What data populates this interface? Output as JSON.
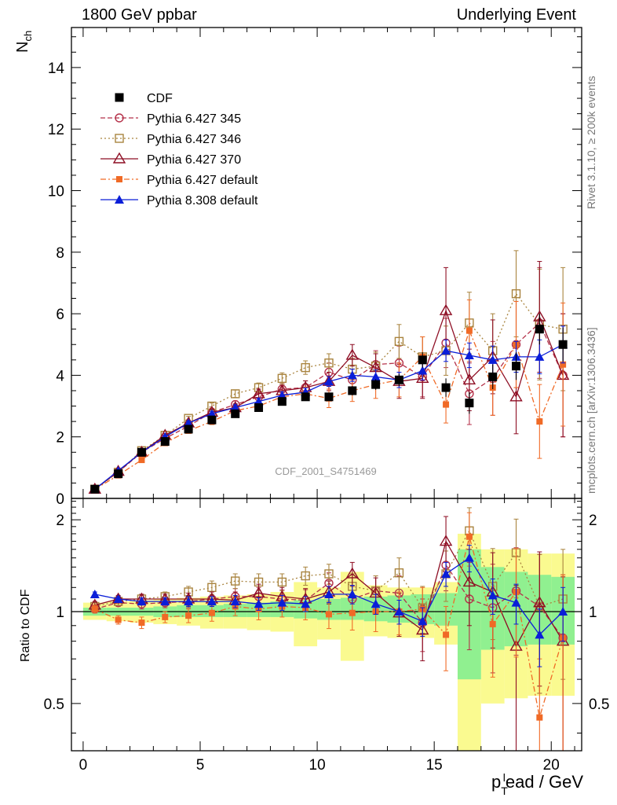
{
  "header": {
    "left": "1800 GeV ppbar",
    "right": "Underlying Event"
  },
  "side_labels": {
    "rivet": "Rivet 3.1.10, ≥ 200k events",
    "mcplots": "mcplots.cern.ch [arXiv:1306.3436]"
  },
  "chart_data": [
    {
      "type": "line",
      "name": "main",
      "title": "",
      "ylabel": "N_ch",
      "xlabel": "",
      "watermark": "CDF_2001_S4751469",
      "xlim": [
        -0.5,
        21.3
      ],
      "ylim": [
        0,
        15.3
      ],
      "yticks": [
        0,
        2,
        4,
        6,
        8,
        10,
        12,
        14
      ],
      "legend_position": "top-left",
      "x": [
        0.5,
        1.5,
        2.5,
        3.5,
        4.5,
        5.5,
        6.5,
        7.5,
        8.5,
        9.5,
        10.5,
        11.5,
        12.5,
        13.5,
        14.5,
        15.5,
        16.5,
        17.5,
        18.5,
        19.5,
        20.5
      ],
      "series": [
        {
          "name": "CDF",
          "style": "data",
          "color": "#000000",
          "marker": "square-filled",
          "values": [
            0.3,
            0.8,
            1.5,
            1.85,
            2.25,
            2.55,
            2.75,
            2.95,
            3.15,
            3.3,
            3.3,
            3.5,
            3.7,
            3.85,
            4.5,
            3.6,
            3.1,
            3.95,
            4.3,
            5.5,
            5.0
          ],
          "errors": [
            0.02,
            0.04,
            0.06,
            0.07,
            0.08,
            0.09,
            0.1,
            0.1,
            0.11,
            0.12,
            0.13,
            0.15,
            0.17,
            0.2,
            0.25,
            0.3,
            0.35,
            0.4,
            0.45,
            0.5,
            0.55
          ]
        },
        {
          "name": "Pythia 6.427 345",
          "color": "#b5324a",
          "dash": "6,3",
          "marker": "circle-open",
          "values": [
            0.3,
            0.85,
            1.5,
            1.95,
            2.35,
            2.8,
            3.05,
            3.3,
            3.55,
            3.6,
            4.1,
            3.85,
            4.35,
            4.4,
            3.95,
            5.05,
            3.4,
            3.9,
            5.0,
            5.7,
            4.0
          ],
          "errors": [
            0.02,
            0.03,
            0.04,
            0.06,
            0.07,
            0.1,
            0.12,
            0.15,
            0.18,
            0.22,
            0.3,
            0.35,
            0.45,
            0.55,
            0.65,
            0.8,
            1.0,
            1.2,
            1.4,
            1.8,
            2.0
          ]
        },
        {
          "name": "Pythia 6.427 346",
          "color": "#a9843f",
          "dash": "2,3",
          "marker": "square-open",
          "values": [
            0.3,
            0.85,
            1.55,
            2.05,
            2.6,
            3.0,
            3.4,
            3.6,
            3.9,
            4.25,
            4.4,
            4.2,
            4.3,
            5.1,
            4.6,
            4.8,
            5.7,
            4.8,
            6.65,
            5.65,
            5.5
          ],
          "errors": [
            0.02,
            0.03,
            0.04,
            0.06,
            0.07,
            0.1,
            0.12,
            0.15,
            0.18,
            0.22,
            0.3,
            0.35,
            0.45,
            0.55,
            0.65,
            0.8,
            1.0,
            1.2,
            1.4,
            1.8,
            2.0
          ]
        },
        {
          "name": "Pythia 6.427 370",
          "color": "#8e0e24",
          "dash": "",
          "marker": "triangle-open",
          "values": [
            0.3,
            0.88,
            1.5,
            2.05,
            2.45,
            2.8,
            2.95,
            3.4,
            3.5,
            3.6,
            3.8,
            4.65,
            4.25,
            3.8,
            3.9,
            6.1,
            3.85,
            4.6,
            3.3,
            5.9,
            4.0
          ],
          "errors": [
            0.02,
            0.03,
            0.04,
            0.06,
            0.07,
            0.1,
            0.12,
            0.15,
            0.18,
            0.22,
            0.3,
            0.35,
            0.45,
            0.55,
            0.65,
            1.4,
            1.0,
            1.2,
            1.2,
            1.8,
            2.0
          ]
        },
        {
          "name": "Pythia 6.427 default",
          "color": "#f06a26",
          "dash": "7,3,2,3",
          "marker": "square-filled-small",
          "values": [
            0.3,
            0.75,
            1.25,
            1.8,
            2.2,
            2.5,
            2.85,
            3.0,
            3.3,
            3.4,
            3.25,
            3.5,
            3.7,
            3.85,
            4.6,
            3.05,
            5.45,
            3.6,
            5.0,
            2.5,
            4.35
          ],
          "errors": [
            0.02,
            0.03,
            0.04,
            0.06,
            0.07,
            0.1,
            0.12,
            0.15,
            0.18,
            0.22,
            0.3,
            0.35,
            0.45,
            0.55,
            0.65,
            0.6,
            1.0,
            0.9,
            1.4,
            1.2,
            2.0
          ]
        },
        {
          "name": "Pythia 8.308 default",
          "color": "#0a1ed8",
          "dash": "",
          "marker": "triangle-filled",
          "values": [
            0.3,
            0.9,
            1.5,
            2.0,
            2.45,
            2.75,
            2.95,
            3.15,
            3.35,
            3.45,
            3.8,
            4.0,
            3.95,
            3.85,
            4.15,
            4.8,
            4.65,
            4.5,
            4.6,
            4.6,
            5.0
          ],
          "errors": [
            0.02,
            0.03,
            0.04,
            0.05,
            0.06,
            0.08,
            0.09,
            0.1,
            0.12,
            0.14,
            0.16,
            0.2,
            0.22,
            0.25,
            0.3,
            0.35,
            0.4,
            0.45,
            0.5,
            0.55,
            0.6
          ]
        }
      ]
    },
    {
      "type": "line",
      "name": "ratio",
      "title": "",
      "ylabel": "Ratio to CDF",
      "xlabel": "p_T^lead / GeV",
      "xlim": [
        -0.5,
        21.3
      ],
      "ylim": [
        0.35,
        2.35
      ],
      "yticks": [
        0.5,
        1,
        2
      ],
      "xticks": [
        0,
        5,
        10,
        15,
        20
      ],
      "reference_line": 1,
      "bands": [
        {
          "name": "inner",
          "color": "#90f090",
          "lower": [
            0.97,
            0.97,
            0.97,
            0.96,
            0.96,
            0.96,
            0.96,
            0.96,
            0.96,
            0.95,
            0.94,
            0.94,
            0.93,
            0.92,
            0.91,
            0.9,
            0.6,
            0.75,
            0.77,
            0.78,
            0.78
          ],
          "upper": [
            1.03,
            1.03,
            1.03,
            1.04,
            1.05,
            1.05,
            1.06,
            1.07,
            1.08,
            1.09,
            1.1,
            1.11,
            1.12,
            1.13,
            1.14,
            1.15,
            1.6,
            1.4,
            1.35,
            1.32,
            1.3
          ]
        },
        {
          "name": "outer",
          "color": "#fafa90",
          "lower": [
            0.94,
            0.93,
            0.92,
            0.91,
            0.9,
            0.88,
            0.88,
            0.87,
            0.86,
            0.77,
            0.81,
            0.69,
            0.83,
            0.82,
            0.82,
            0.78,
            0.33,
            0.5,
            0.52,
            0.53,
            0.53
          ],
          "upper": [
            1.07,
            1.08,
            1.09,
            1.1,
            1.11,
            1.12,
            1.13,
            1.14,
            1.16,
            1.25,
            1.2,
            1.35,
            1.22,
            1.2,
            1.2,
            1.25,
            1.8,
            1.6,
            1.6,
            1.55,
            1.55
          ]
        }
      ],
      "x": [
        0.5,
        1.5,
        2.5,
        3.5,
        4.5,
        5.5,
        6.5,
        7.5,
        8.5,
        9.5,
        10.5,
        11.5,
        12.5,
        13.5,
        14.5,
        15.5,
        16.5,
        17.5,
        18.5,
        19.5,
        20.5
      ],
      "series": [
        {
          "name": "Pythia 6.427 345",
          "color": "#b5324a",
          "dash": "6,3",
          "marker": "circle-open",
          "values": [
            1.02,
            1.07,
            1.06,
            1.07,
            1.08,
            1.1,
            1.12,
            1.12,
            1.1,
            1.09,
            1.24,
            1.1,
            1.17,
            1.15,
            0.92,
            1.42,
            1.1,
            1.03,
            1.17,
            1.04,
            0.82
          ],
          "errors": [
            0.03,
            0.03,
            0.04,
            0.04,
            0.05,
            0.06,
            0.07,
            0.08,
            0.08,
            0.09,
            0.1,
            0.12,
            0.14,
            0.16,
            0.18,
            0.25,
            0.35,
            0.4,
            0.45,
            0.5,
            0.5
          ]
        },
        {
          "name": "Pythia 6.427 346",
          "color": "#a9843f",
          "dash": "2,3",
          "marker": "square-open",
          "values": [
            1.04,
            1.08,
            1.1,
            1.12,
            1.16,
            1.2,
            1.26,
            1.25,
            1.25,
            1.31,
            1.33,
            1.21,
            1.17,
            1.34,
            1.03,
            1.33,
            1.84,
            1.21,
            1.56,
            1.04,
            1.1
          ],
          "errors": [
            0.03,
            0.03,
            0.04,
            0.04,
            0.05,
            0.06,
            0.07,
            0.08,
            0.08,
            0.09,
            0.1,
            0.12,
            0.14,
            0.16,
            0.18,
            0.25,
            0.35,
            0.4,
            0.45,
            0.5,
            0.5
          ]
        },
        {
          "name": "Pythia 6.427 370",
          "color": "#8e0e24",
          "dash": "",
          "marker": "triangle-open",
          "values": [
            1.05,
            1.1,
            1.1,
            1.1,
            1.1,
            1.1,
            1.09,
            1.15,
            1.12,
            1.1,
            1.16,
            1.33,
            1.15,
            0.99,
            0.87,
            1.7,
            1.25,
            1.16,
            0.77,
            1.07,
            0.8
          ],
          "errors": [
            0.03,
            0.03,
            0.04,
            0.04,
            0.05,
            0.06,
            0.07,
            0.08,
            0.08,
            0.09,
            0.1,
            0.12,
            0.14,
            0.16,
            0.18,
            0.35,
            0.35,
            0.4,
            0.45,
            0.5,
            0.5
          ]
        },
        {
          "name": "Pythia 6.427 default",
          "color": "#f06a26",
          "dash": "7,3,2,3",
          "marker": "square-filled-small",
          "values": [
            1.02,
            0.94,
            0.92,
            0.96,
            0.97,
            0.99,
            1.04,
            1.02,
            1.04,
            1.03,
            0.98,
            0.99,
            1.0,
            1.0,
            1.02,
            0.84,
            1.76,
            0.91,
            1.16,
            0.45,
            0.82
          ],
          "errors": [
            0.03,
            0.03,
            0.04,
            0.04,
            0.05,
            0.06,
            0.07,
            0.08,
            0.08,
            0.09,
            0.1,
            0.12,
            0.14,
            0.16,
            0.18,
            0.2,
            0.35,
            0.3,
            0.45,
            0.25,
            0.5
          ]
        },
        {
          "name": "Pythia 8.308 default",
          "color": "#0a1ed8",
          "dash": "",
          "marker": "triangle-filled",
          "values": [
            1.14,
            1.1,
            1.08,
            1.08,
            1.08,
            1.08,
            1.08,
            1.06,
            1.07,
            1.06,
            1.14,
            1.14,
            1.06,
            1.0,
            0.93,
            1.33,
            1.5,
            1.13,
            1.07,
            0.84,
            1.0
          ],
          "errors": [
            0.02,
            0.02,
            0.03,
            0.03,
            0.04,
            0.04,
            0.05,
            0.05,
            0.06,
            0.06,
            0.07,
            0.08,
            0.08,
            0.09,
            0.1,
            0.12,
            0.15,
            0.15,
            0.16,
            0.18,
            0.2
          ]
        }
      ]
    }
  ]
}
